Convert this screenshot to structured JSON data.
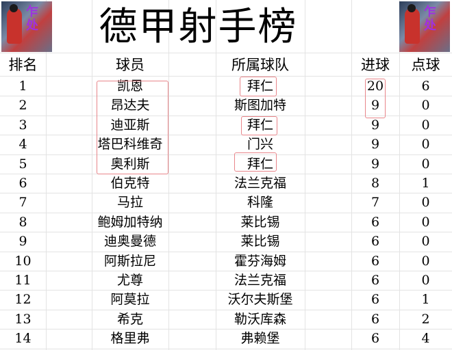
{
  "title": "德甲射手榜",
  "header": {
    "rank": "排名",
    "player": "球员",
    "team": "所属球队",
    "goals": "进球",
    "penalties": "点球"
  },
  "rows": [
    {
      "rank": "1",
      "player": "凯恩",
      "team": "拜仁",
      "goals": "20",
      "penalties": "6"
    },
    {
      "rank": "2",
      "player": "昂达夫",
      "team": "斯图加特",
      "goals": "9",
      "penalties": "0"
    },
    {
      "rank": "3",
      "player": "迪亚斯",
      "team": "拜仁",
      "goals": "9",
      "penalties": "0"
    },
    {
      "rank": "4",
      "player": "塔巴科维奇",
      "team": "门兴",
      "goals": "9",
      "penalties": "0"
    },
    {
      "rank": "5",
      "player": "奥利斯",
      "team": "拜仁",
      "goals": "9",
      "penalties": "0"
    },
    {
      "rank": "6",
      "player": "伯克特",
      "team": "法兰克福",
      "goals": "8",
      "penalties": "1"
    },
    {
      "rank": "7",
      "player": "马拉",
      "team": "科隆",
      "goals": "7",
      "penalties": "0"
    },
    {
      "rank": "8",
      "player": "鲍姆加特纳",
      "team": "莱比锡",
      "goals": "6",
      "penalties": "0"
    },
    {
      "rank": "9",
      "player": "迪奥曼德",
      "team": "莱比锡",
      "goals": "6",
      "penalties": "0"
    },
    {
      "rank": "10",
      "player": "阿斯拉尼",
      "team": "霍芬海姆",
      "goals": "6",
      "penalties": "0"
    },
    {
      "rank": "11",
      "player": "尤尊",
      "team": "法兰克福",
      "goals": "6",
      "penalties": "0"
    },
    {
      "rank": "12",
      "player": "阿莫拉",
      "team": "沃尔夫斯堡",
      "goals": "6",
      "penalties": "1"
    },
    {
      "rank": "13",
      "player": "希克",
      "team": "勒沃库森",
      "goals": "6",
      "penalties": "2"
    },
    {
      "rank": "14",
      "player": "格里弗",
      "team": "弗赖堡",
      "goals": "6",
      "penalties": "4"
    }
  ],
  "highlight_color": "#e8858a"
}
